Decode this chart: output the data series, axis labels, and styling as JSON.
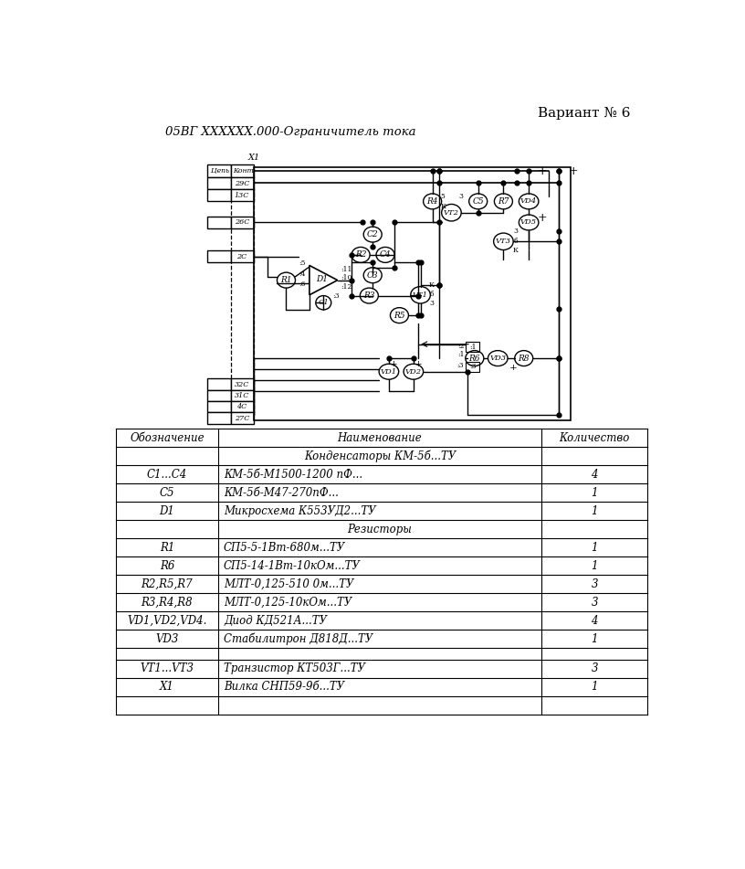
{
  "title": "05ВГ ХХХХХХ.000-Ограничитель тока",
  "variant": "Вариант № 6",
  "bg_color": "#ffffff",
  "table_rows": [
    [
      "",
      "Конденсаторы КМ-5б...ТУ",
      ""
    ],
    [
      "C1...C4",
      "КМ-5б-М1500-1200 пФ...",
      "4"
    ],
    [
      "C5",
      "КМ-5б-М47-270пФ...",
      "1"
    ],
    [
      "D1",
      "Микросхема К553УД2...ТУ",
      "1"
    ],
    [
      "",
      "Резисторы",
      ""
    ],
    [
      "R1",
      "СП5-5-1Вт-680м...ТУ",
      "1"
    ],
    [
      "R6",
      "СП5-14-1Вт-10кОм...ТУ",
      "1"
    ],
    [
      "R2,R5,R7",
      "МЛТ-0,125-510 0м...ТУ",
      "3"
    ],
    [
      "R3,R4,R8",
      "МЛТ-0,125-10кОм...ТУ",
      "3"
    ],
    [
      "VD1,VD2,VD4.",
      "Диод КД521А...ТУ",
      "4"
    ],
    [
      "VD3",
      "Стабилитрон Д818Д...ТУ",
      "1"
    ],
    [
      "",
      "",
      ""
    ],
    [
      "VT1...VT3",
      "Транзистор КТ503Г...ТУ",
      "3"
    ],
    [
      "X1",
      "Вилка СНП59-9б...ТУ",
      "1"
    ],
    [
      "",
      "",
      ""
    ]
  ]
}
